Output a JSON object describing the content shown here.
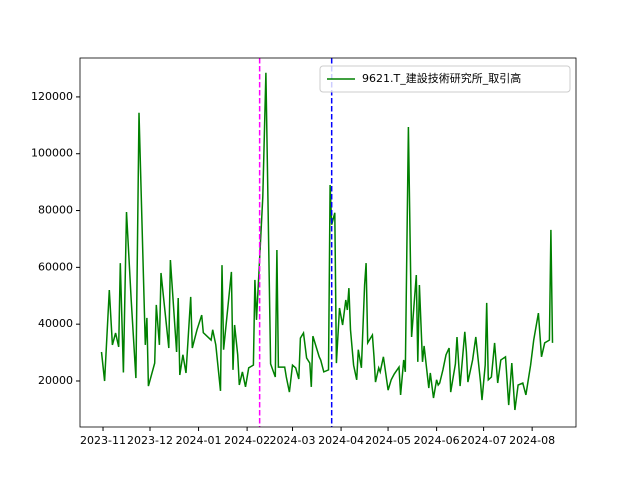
{
  "chart_data": {
    "type": "line",
    "x": [
      -1,
      1,
      4,
      6,
      8,
      10,
      11,
      13,
      15,
      18,
      21,
      23,
      27,
      28,
      29,
      33,
      34,
      36,
      37,
      42,
      43,
      47,
      48,
      49,
      51,
      53,
      56,
      57,
      60,
      63,
      64,
      69,
      70,
      72,
      75,
      76,
      77,
      82,
      83,
      84,
      86,
      87,
      89,
      91,
      93,
      96,
      97,
      98,
      102,
      104,
      107,
      110,
      111,
      112,
      116,
      117,
      119,
      121,
      123,
      125,
      126,
      128,
      130,
      132,
      133,
      134,
      138,
      139,
      141,
      144,
      145,
      146,
      148,
      149,
      151,
      153,
      155,
      156,
      157,
      158,
      160,
      162,
      163,
      165,
      167,
      168,
      169,
      172,
      173,
      174,
      176,
      177,
      179,
      182,
      184,
      186,
      189,
      190,
      192,
      193,
      195,
      197,
      200,
      201,
      202,
      204,
      205,
      208,
      209,
      211,
      213,
      214,
      215,
      217,
      219,
      221,
      222,
      225,
      226,
      228,
      231,
      232,
      233,
      236,
      238,
      241,
      242,
      244,
      245,
      246,
      248,
      250,
      252,
      254,
      257,
      259,
      261,
      263,
      265,
      268,
      270,
      273,
      275,
      278,
      280,
      282,
      285,
      286,
      287
    ],
    "series": [
      {
        "name": "9621.T_建設技術研究所_取引高",
        "color": "#008000",
        "values": [
          30200,
          20000,
          52000,
          32700,
          36900,
          32000,
          61500,
          23000,
          79500,
          48500,
          21000,
          114400,
          32700,
          42200,
          18200,
          26300,
          46800,
          32700,
          58000,
          31600,
          62600,
          30200,
          49200,
          22100,
          29200,
          22800,
          49600,
          31600,
          38000,
          43200,
          37000,
          34400,
          38000,
          32700,
          16500,
          60800,
          31000,
          58400,
          23900,
          39700,
          29200,
          18600,
          23200,
          17900,
          24600,
          25600,
          55600,
          41500,
          84800,
          128500,
          26000,
          21400,
          66100,
          24900,
          24900,
          21400,
          16100,
          25600,
          24600,
          20700,
          35100,
          36900,
          28100,
          26300,
          17900,
          35800,
          28500,
          27400,
          23200,
          23900,
          89000,
          75000,
          79200,
          26300,
          45700,
          39700,
          48500,
          45000,
          52700,
          38000,
          25600,
          20400,
          31000,
          24600,
          53800,
          61500,
          33400,
          36200,
          28500,
          19600,
          24600,
          23200,
          28500,
          16800,
          20400,
          22500,
          24900,
          15100,
          27400,
          23200,
          109400,
          35500,
          57300,
          26700,
          53800,
          26700,
          32300,
          17500,
          22800,
          14000,
          20400,
          18600,
          19300,
          23900,
          29200,
          31600,
          16100,
          26000,
          35500,
          18200,
          37300,
          30200,
          19600,
          27400,
          35500,
          19600,
          13300,
          25600,
          47500,
          20400,
          21400,
          33400,
          19300,
          27400,
          28500,
          11500,
          26300,
          9800,
          18600,
          19300,
          15100,
          25600,
          34400,
          43900,
          28500,
          33400,
          34400,
          73200,
          33400
        ]
      }
    ],
    "xlim": [
      -14.7,
      302
    ],
    "xticks": [
      {
        "value": 0,
        "label": "2023-11"
      },
      {
        "value": 30,
        "label": "2023-12"
      },
      {
        "value": 61,
        "label": "2024-01"
      },
      {
        "value": 92,
        "label": "2024-02"
      },
      {
        "value": 121,
        "label": "2024-03"
      },
      {
        "value": 152,
        "label": "2024-04"
      },
      {
        "value": 182,
        "label": "2024-05"
      },
      {
        "value": 213,
        "label": "2024-06"
      },
      {
        "value": 243,
        "label": "2024-07"
      },
      {
        "value": 274,
        "label": "2024-08"
      }
    ],
    "ylim": [
      3800,
      133700
    ],
    "yticks": [
      20000,
      40000,
      60000,
      80000,
      100000,
      120000
    ],
    "vlines": [
      {
        "x": 100,
        "color": "#ff00ff"
      },
      {
        "x": 146,
        "color": "#0000ff"
      }
    ],
    "legend": "upper right"
  }
}
